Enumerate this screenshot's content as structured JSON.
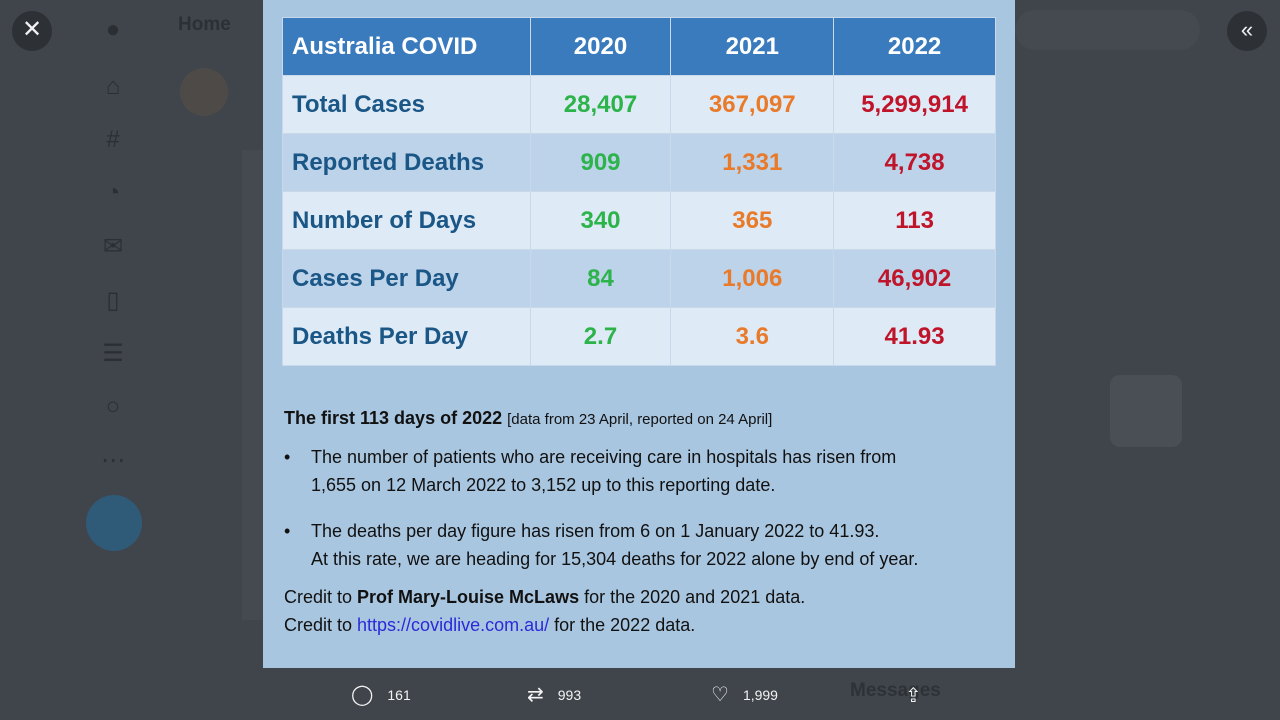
{
  "background": {
    "home_label": "Home",
    "messages_label": "Messages"
  },
  "controls": {
    "close_glyph": "✕",
    "expand_glyph": "«"
  },
  "table": {
    "headers": [
      "Australia COVID",
      "2020",
      "2021",
      "2022"
    ],
    "rows": [
      {
        "label": "Total Cases",
        "v2020": "28,407",
        "v2021": "367,097",
        "v2022": "5,299,914"
      },
      {
        "label": "Reported Deaths",
        "v2020": "909",
        "v2021": "1,331",
        "v2022": "4,738"
      },
      {
        "label": "Number of Days",
        "v2020": "340",
        "v2021": "365",
        "v2022": "113"
      },
      {
        "label": "Cases Per Day",
        "v2020": "84",
        "v2021": "1,006",
        "v2022": "46,902"
      },
      {
        "label": "Deaths Per Day",
        "v2020": "2.7",
        "v2021": "3.6",
        "v2022": "41.93"
      }
    ],
    "colors": {
      "header_bg": "#3a7bbd",
      "c2020": "#2cb34a",
      "c2021": "#e87a2a",
      "c2022": "#c0142a"
    }
  },
  "notes": {
    "heading_bold": "The first 113 days of 2022",
    "heading_small": "[data from 23 April, reported on 24 April]",
    "bullet1_line1": "The number of patients who are receiving care in hospitals has risen from",
    "bullet1_line2": "1,655 on 12 March 2022 to 3,152 up to this reporting date.",
    "bullet2_line1": "The deaths per day figure has risen from 6 on 1 January 2022 to 41.93.",
    "bullet2_line2": "At this rate, we are heading for 15,304 deaths for 2022 alone by end of year.",
    "credit1_prefix": "Credit to ",
    "credit1_name": "Prof Mary-Louise McLaws",
    "credit1_suffix": " for the 2020 and 2021 data.",
    "credit2_prefix": "Credit to ",
    "credit2_link": "https://covidlive.com.au/",
    "credit2_suffix": " for the 2022 data."
  },
  "actions": {
    "replies": "161",
    "retweets": "993",
    "likes": "1,999"
  }
}
